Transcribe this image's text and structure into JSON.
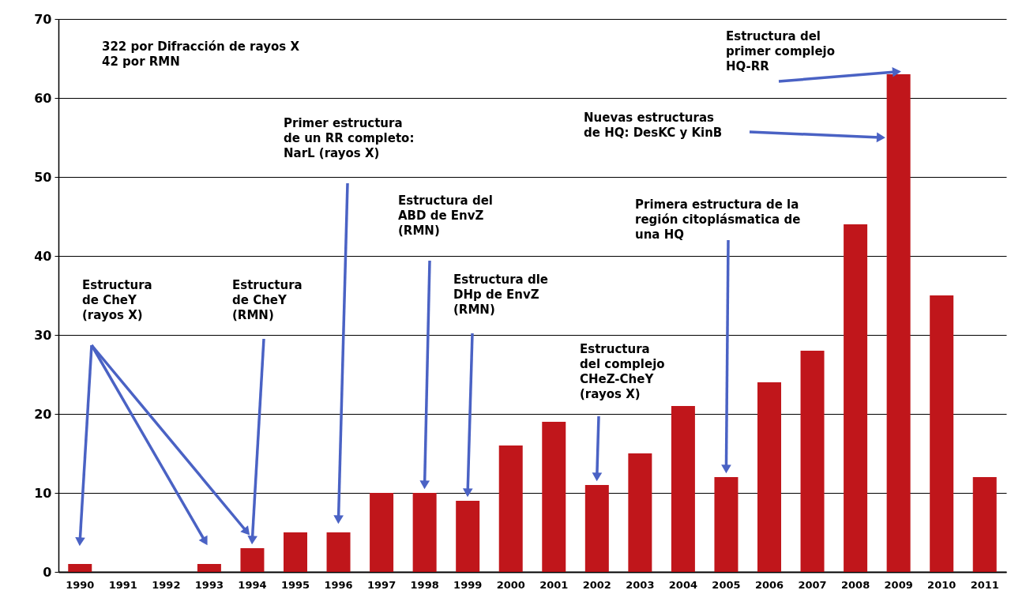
{
  "chart_data": {
    "type": "bar",
    "categories": [
      "1990",
      "1991",
      "1992",
      "1993",
      "1994",
      "1995",
      "1996",
      "1997",
      "1998",
      "1999",
      "2000",
      "2001",
      "2002",
      "2003",
      "2004",
      "2005",
      "2006",
      "2007",
      "2008",
      "2009",
      "2010",
      "2011"
    ],
    "values": [
      1,
      0,
      0,
      1,
      3,
      5,
      5,
      10,
      10,
      9,
      16,
      19,
      11,
      15,
      21,
      12,
      24,
      28,
      44,
      63,
      35,
      12
    ],
    "color": "#c0161b",
    "ylim": [
      0,
      70
    ],
    "yticks": [
      0,
      10,
      20,
      30,
      40,
      50,
      60,
      70
    ],
    "grid": "y",
    "annotations": [
      "322 por Difracción de rayos X\n42 por RMN",
      "Estructura\nde CheY\n(rayos X)",
      "Estructura\nde CheY\n(RMN)",
      "Primer estructura\nde un RR completo:\nNarL (rayos X)",
      "Estructura del\nABD de EnvZ\n(RMN)",
      "Estructura dle\nDHp de EnvZ\n(RMN)",
      "Estructura\ndel complejo\nCHeZ-CheY\n(rayos X)",
      "Primera estructura de la\nregión citoplásmatica de\nuna HQ",
      "Nuevas estructuras\nde HQ: DesKC y KinB",
      {
        "text": "Estructura del\nprimer complejo\nHQ-RR",
        "x": "2009",
        "y": 63
      }
    ]
  }
}
